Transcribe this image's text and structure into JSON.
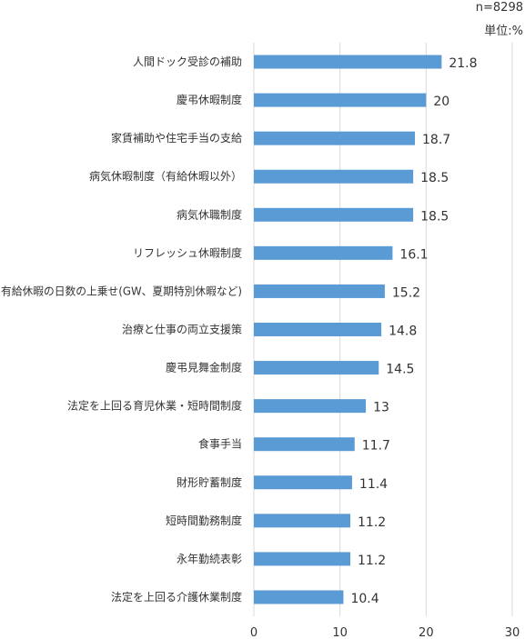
{
  "header": {
    "sample_size": "n=8298",
    "unit": "単位:%"
  },
  "chart_data": {
    "type": "bar",
    "orientation": "horizontal",
    "categories": [
      "人間ドック受診の補助",
      "慶弔休暇制度",
      "家賃補助や住宅手当の支給",
      "病気休暇制度（有給休暇以外）",
      "病気休職制度",
      "リフレッシュ休暇制度",
      "有給休暇の日数の上乗せ(GW、夏期特別休暇など)",
      "治療と仕事の両立支援策",
      "慶弔見舞金制度",
      "法定を上回る育児休業・短時間制度",
      "食事手当",
      "財形貯蓄制度",
      "短時間勤務制度",
      "永年勤続表彰",
      "法定を上回る介護休業制度"
    ],
    "values": [
      21.8,
      20,
      18.7,
      18.5,
      18.5,
      16.1,
      15.2,
      14.8,
      14.5,
      13,
      11.7,
      11.4,
      11.2,
      11.2,
      10.4
    ],
    "value_labels": [
      "21.8",
      "20",
      "18.7",
      "18.5",
      "18.5",
      "16.1",
      "15.2",
      "14.8",
      "14.5",
      "13",
      "11.7",
      "11.4",
      "11.2",
      "11.2",
      "10.4"
    ],
    "xlim": [
      0,
      30
    ],
    "xticks": [
      "0",
      "10",
      "20",
      "30"
    ],
    "grid": true,
    "bar_color": "#5b9bd5",
    "grid_color": "#d9d9d9"
  }
}
